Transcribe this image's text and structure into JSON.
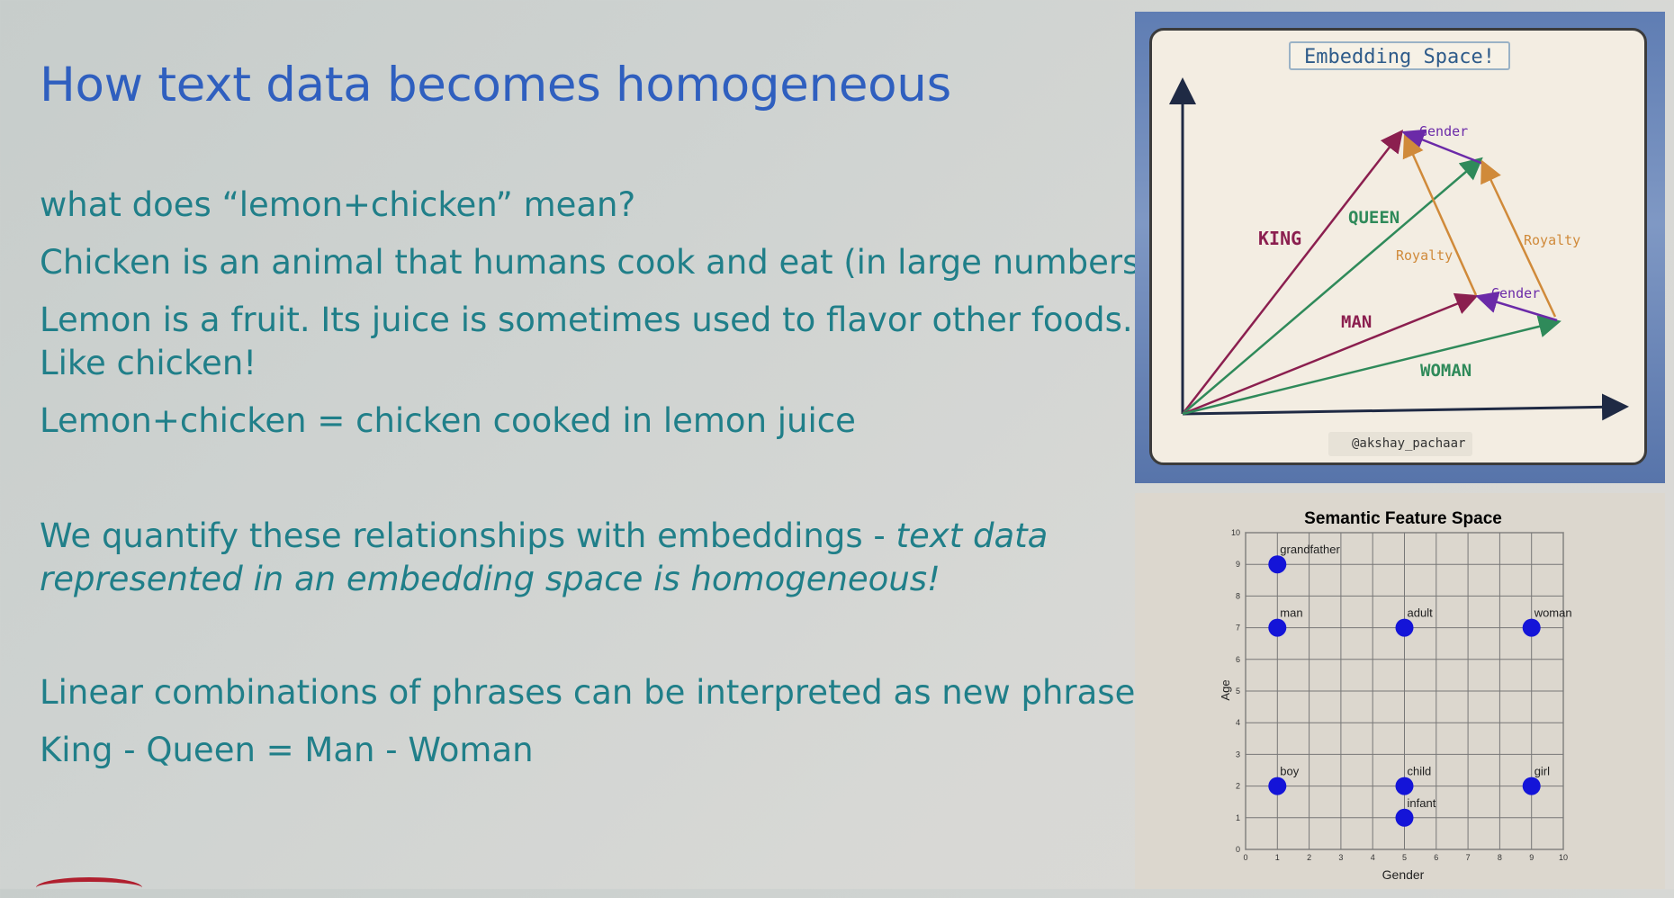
{
  "slide": {
    "title": "How text data becomes homogeneous",
    "lines": {
      "q": "what does “lemon+chicken” mean?",
      "chicken": "Chicken is an animal that humans cook and eat (in large numbers)",
      "lemon_1": "Lemon is a fruit. Its juice is sometimes used to flavor other foods.",
      "lemon_2": "Like chicken!",
      "combo": "Lemon+chicken = chicken cooked in lemon juice",
      "quantify_a": "We quantify these relationships with embeddings - ",
      "quantify_b": "text data",
      "quantify_c": "represented in an embedding space is homogeneous!",
      "linear": "Linear combinations of phrases can be interpreted as new phrases:",
      "equation": "King - Queen = Man - Woman"
    }
  },
  "embedding_figure": {
    "title": "Embedding Space!",
    "credit": "@akshay_pachaar",
    "labels": {
      "king": "KING",
      "queen": "QUEEN",
      "man": "MAN",
      "woman": "WOMAN",
      "gender_top": "Gender",
      "gender_bottom": "Gender",
      "royalty_left": "Royalty",
      "royalty_right": "Royalty"
    },
    "colors": {
      "king": "#8b1f4f",
      "queen": "#2f8a5a",
      "gender": "#6b2aa8",
      "royalty": "#d08a3a",
      "axis": "#1f2a44"
    }
  },
  "semantic_figure": {
    "title": "Semantic Feature Space"
  },
  "chart_data": {
    "type": "scatter",
    "title": "Semantic Feature Space",
    "xlabel": "Gender",
    "ylabel": "Age",
    "xlim": [
      0,
      10
    ],
    "ylim": [
      0,
      10
    ],
    "xticks": [
      0,
      1,
      2,
      3,
      4,
      5,
      6,
      7,
      8,
      9,
      10
    ],
    "yticks": [
      0,
      1,
      2,
      3,
      4,
      5,
      6,
      7,
      8,
      9,
      10
    ],
    "grid": true,
    "points": [
      {
        "label": "grandfather",
        "x": 1,
        "y": 9
      },
      {
        "label": "man",
        "x": 1,
        "y": 7
      },
      {
        "label": "adult",
        "x": 5,
        "y": 7
      },
      {
        "label": "woman",
        "x": 9,
        "y": 7
      },
      {
        "label": "boy",
        "x": 1,
        "y": 2
      },
      {
        "label": "child",
        "x": 5,
        "y": 2
      },
      {
        "label": "girl",
        "x": 9,
        "y": 2
      },
      {
        "label": "infant",
        "x": 5,
        "y": 1
      }
    ],
    "marker_color": "#1414d8"
  }
}
